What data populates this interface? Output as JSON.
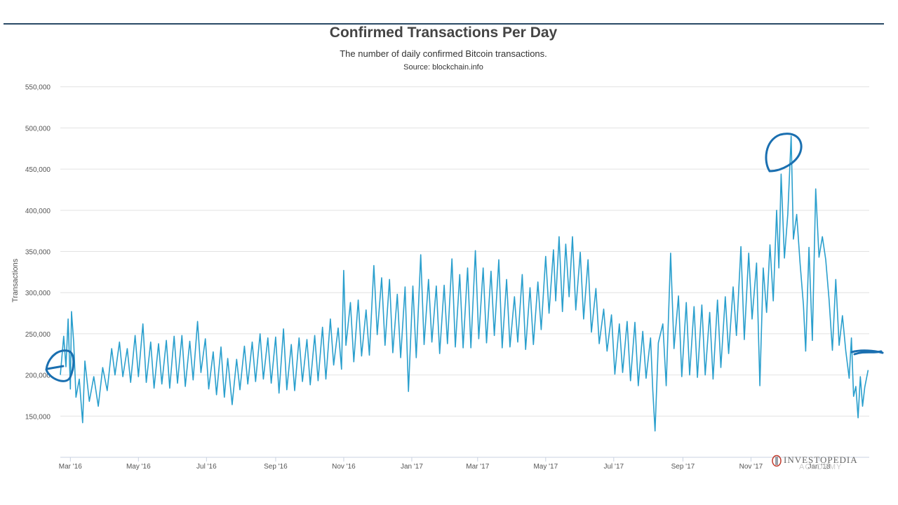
{
  "page": {
    "title": "Confirmed Transactions Per Day",
    "subtitle": "The number of daily confirmed Bitcoin transactions.",
    "source": "Source: blockchain.info"
  },
  "logo": {
    "wordmark": "INVESTOPEDIA",
    "sub": "ACADEMY"
  },
  "colors": {
    "line": "#2a9fcd",
    "annotation": "#1a6fb0",
    "grid": "#e2e2e2",
    "axis": "#c9d2e0"
  },
  "chart_data": {
    "type": "line",
    "title": "Confirmed Transactions Per Day",
    "subtitle": "The number of daily confirmed Bitcoin transactions.",
    "ylabel": "Transactions",
    "xlabel": "",
    "ylim": [
      100000,
      560000
    ],
    "xlim": [
      "2016-02-21",
      "2018-02-15"
    ],
    "y_ticks": [
      {
        "value": 150000,
        "label": "150,000"
      },
      {
        "value": 200000,
        "label": "200,000"
      },
      {
        "value": 250000,
        "label": "250,000"
      },
      {
        "value": 300000,
        "label": "300,000"
      },
      {
        "value": 350000,
        "label": "350,000"
      },
      {
        "value": 400000,
        "label": "400,000"
      },
      {
        "value": 450000,
        "label": "450,000"
      },
      {
        "value": 500000,
        "label": "500,000"
      },
      {
        "value": 550000,
        "label": "550,000"
      }
    ],
    "x_ticks": [
      {
        "value": "2016-03-01",
        "label": "Mar '16"
      },
      {
        "value": "2016-05-01",
        "label": "May '16"
      },
      {
        "value": "2016-07-01",
        "label": "Jul '16"
      },
      {
        "value": "2016-09-01",
        "label": "Sep '16"
      },
      {
        "value": "2016-11-01",
        "label": "Nov '16"
      },
      {
        "value": "2017-01-01",
        "label": "Jan '17"
      },
      {
        "value": "2017-03-01",
        "label": "Mar '17"
      },
      {
        "value": "2017-05-01",
        "label": "May '17"
      },
      {
        "value": "2017-07-01",
        "label": "Jul '17"
      },
      {
        "value": "2017-09-01",
        "label": "Sep '17"
      },
      {
        "value": "2017-11-01",
        "label": "Nov '17"
      },
      {
        "value": "2018-01-01",
        "label": "Jan '18"
      }
    ],
    "grid": true,
    "legend": "none",
    "series": [
      {
        "points": [
          [
            "2016-02-21",
            200000
          ],
          [
            "2016-02-24",
            247000
          ],
          [
            "2016-02-26",
            210000
          ],
          [
            "2016-02-28",
            268000
          ],
          [
            "2016-03-01",
            183000
          ],
          [
            "2016-03-02",
            277000
          ],
          [
            "2016-03-04",
            239000
          ],
          [
            "2016-03-06",
            173000
          ],
          [
            "2016-03-09",
            195000
          ],
          [
            "2016-03-12",
            142000
          ],
          [
            "2016-03-14",
            217000
          ],
          [
            "2016-03-18",
            168000
          ],
          [
            "2016-03-22",
            198000
          ],
          [
            "2016-03-26",
            162000
          ],
          [
            "2016-03-30",
            209000
          ],
          [
            "2016-04-03",
            181000
          ],
          [
            "2016-04-07",
            232000
          ],
          [
            "2016-04-10",
            200000
          ],
          [
            "2016-04-14",
            240000
          ],
          [
            "2016-04-17",
            198000
          ],
          [
            "2016-04-21",
            232000
          ],
          [
            "2016-04-24",
            191000
          ],
          [
            "2016-04-28",
            248000
          ],
          [
            "2016-05-01",
            198000
          ],
          [
            "2016-05-05",
            262000
          ],
          [
            "2016-05-08",
            191000
          ],
          [
            "2016-05-12",
            240000
          ],
          [
            "2016-05-15",
            184000
          ],
          [
            "2016-05-19",
            238000
          ],
          [
            "2016-05-22",
            189000
          ],
          [
            "2016-05-26",
            242000
          ],
          [
            "2016-05-29",
            184000
          ],
          [
            "2016-06-02",
            247000
          ],
          [
            "2016-06-05",
            190000
          ],
          [
            "2016-06-09",
            248000
          ],
          [
            "2016-06-12",
            186000
          ],
          [
            "2016-06-16",
            241000
          ],
          [
            "2016-06-19",
            194000
          ],
          [
            "2016-06-23",
            265000
          ],
          [
            "2016-06-26",
            203000
          ],
          [
            "2016-06-30",
            244000
          ],
          [
            "2016-07-03",
            183000
          ],
          [
            "2016-07-07",
            228000
          ],
          [
            "2016-07-10",
            176000
          ],
          [
            "2016-07-14",
            234000
          ],
          [
            "2016-07-17",
            173000
          ],
          [
            "2016-07-20",
            220000
          ],
          [
            "2016-07-24",
            164000
          ],
          [
            "2016-07-28",
            219000
          ],
          [
            "2016-07-31",
            182000
          ],
          [
            "2016-08-04",
            235000
          ],
          [
            "2016-08-07",
            189000
          ],
          [
            "2016-08-11",
            240000
          ],
          [
            "2016-08-14",
            192000
          ],
          [
            "2016-08-18",
            250000
          ],
          [
            "2016-08-21",
            195000
          ],
          [
            "2016-08-25",
            245000
          ],
          [
            "2016-08-28",
            190000
          ],
          [
            "2016-09-01",
            246000
          ],
          [
            "2016-09-04",
            178000
          ],
          [
            "2016-09-08",
            256000
          ],
          [
            "2016-09-11",
            182000
          ],
          [
            "2016-09-15",
            237000
          ],
          [
            "2016-09-18",
            181000
          ],
          [
            "2016-09-22",
            245000
          ],
          [
            "2016-09-25",
            192000
          ],
          [
            "2016-09-29",
            243000
          ],
          [
            "2016-10-02",
            188000
          ],
          [
            "2016-10-06",
            248000
          ],
          [
            "2016-10-09",
            193000
          ],
          [
            "2016-10-13",
            258000
          ],
          [
            "2016-10-16",
            195000
          ],
          [
            "2016-10-20",
            268000
          ],
          [
            "2016-10-23",
            212000
          ],
          [
            "2016-10-27",
            257000
          ],
          [
            "2016-10-30",
            207000
          ],
          [
            "2016-11-01",
            327000
          ],
          [
            "2016-11-03",
            236000
          ],
          [
            "2016-11-07",
            288000
          ],
          [
            "2016-11-10",
            216000
          ],
          [
            "2016-11-14",
            291000
          ],
          [
            "2016-11-17",
            223000
          ],
          [
            "2016-11-21",
            279000
          ],
          [
            "2016-11-24",
            224000
          ],
          [
            "2016-11-28",
            333000
          ],
          [
            "2016-12-01",
            249000
          ],
          [
            "2016-12-05",
            318000
          ],
          [
            "2016-12-08",
            236000
          ],
          [
            "2016-12-12",
            316000
          ],
          [
            "2016-12-15",
            227000
          ],
          [
            "2016-12-19",
            298000
          ],
          [
            "2016-12-22",
            221000
          ],
          [
            "2016-12-26",
            307000
          ],
          [
            "2016-12-29",
            180000
          ],
          [
            "2017-01-02",
            308000
          ],
          [
            "2017-01-05",
            221000
          ],
          [
            "2017-01-09",
            346000
          ],
          [
            "2017-01-12",
            237000
          ],
          [
            "2017-01-16",
            316000
          ],
          [
            "2017-01-19",
            240000
          ],
          [
            "2017-01-23",
            308000
          ],
          [
            "2017-01-26",
            226000
          ],
          [
            "2017-01-30",
            309000
          ],
          [
            "2017-02-02",
            238000
          ],
          [
            "2017-02-06",
            341000
          ],
          [
            "2017-02-09",
            234000
          ],
          [
            "2017-02-13",
            322000
          ],
          [
            "2017-02-16",
            233000
          ],
          [
            "2017-02-20",
            330000
          ],
          [
            "2017-02-23",
            233000
          ],
          [
            "2017-02-27",
            351000
          ],
          [
            "2017-03-02",
            244000
          ],
          [
            "2017-03-06",
            330000
          ],
          [
            "2017-03-09",
            239000
          ],
          [
            "2017-03-13",
            326000
          ],
          [
            "2017-03-16",
            248000
          ],
          [
            "2017-03-20",
            340000
          ],
          [
            "2017-03-23",
            233000
          ],
          [
            "2017-03-27",
            316000
          ],
          [
            "2017-03-30",
            234000
          ],
          [
            "2017-04-03",
            295000
          ],
          [
            "2017-04-06",
            240000
          ],
          [
            "2017-04-10",
            322000
          ],
          [
            "2017-04-13",
            231000
          ],
          [
            "2017-04-17",
            306000
          ],
          [
            "2017-04-20",
            237000
          ],
          [
            "2017-04-24",
            313000
          ],
          [
            "2017-04-27",
            255000
          ],
          [
            "2017-05-01",
            344000
          ],
          [
            "2017-05-04",
            275000
          ],
          [
            "2017-05-08",
            352000
          ],
          [
            "2017-05-10",
            290000
          ],
          [
            "2017-05-13",
            368000
          ],
          [
            "2017-05-16",
            277000
          ],
          [
            "2017-05-19",
            359000
          ],
          [
            "2017-05-22",
            295000
          ],
          [
            "2017-05-25",
            368000
          ],
          [
            "2017-05-28",
            279000
          ],
          [
            "2017-06-01",
            349000
          ],
          [
            "2017-06-04",
            268000
          ],
          [
            "2017-06-08",
            340000
          ],
          [
            "2017-06-11",
            252000
          ],
          [
            "2017-06-15",
            305000
          ],
          [
            "2017-06-18",
            238000
          ],
          [
            "2017-06-22",
            280000
          ],
          [
            "2017-06-25",
            229000
          ],
          [
            "2017-06-29",
            273000
          ],
          [
            "2017-07-02",
            201000
          ],
          [
            "2017-07-06",
            262000
          ],
          [
            "2017-07-09",
            203000
          ],
          [
            "2017-07-13",
            265000
          ],
          [
            "2017-07-16",
            193000
          ],
          [
            "2017-07-20",
            264000
          ],
          [
            "2017-07-23",
            187000
          ],
          [
            "2017-07-27",
            253000
          ],
          [
            "2017-07-30",
            196000
          ],
          [
            "2017-08-03",
            245000
          ],
          [
            "2017-08-05",
            181000
          ],
          [
            "2017-08-07",
            132000
          ],
          [
            "2017-08-10",
            239000
          ],
          [
            "2017-08-14",
            262000
          ],
          [
            "2017-08-17",
            187000
          ],
          [
            "2017-08-21",
            348000
          ],
          [
            "2017-08-24",
            232000
          ],
          [
            "2017-08-28",
            296000
          ],
          [
            "2017-08-31",
            198000
          ],
          [
            "2017-09-04",
            288000
          ],
          [
            "2017-09-07",
            200000
          ],
          [
            "2017-09-11",
            283000
          ],
          [
            "2017-09-14",
            197000
          ],
          [
            "2017-09-18",
            285000
          ],
          [
            "2017-09-21",
            200000
          ],
          [
            "2017-09-25",
            276000
          ],
          [
            "2017-09-28",
            195000
          ],
          [
            "2017-10-02",
            291000
          ],
          [
            "2017-10-05",
            209000
          ],
          [
            "2017-10-09",
            295000
          ],
          [
            "2017-10-12",
            226000
          ],
          [
            "2017-10-16",
            307000
          ],
          [
            "2017-10-19",
            248000
          ],
          [
            "2017-10-23",
            356000
          ],
          [
            "2017-10-26",
            243000
          ],
          [
            "2017-10-30",
            348000
          ],
          [
            "2017-11-02",
            268000
          ],
          [
            "2017-11-06",
            336000
          ],
          [
            "2017-11-09",
            187000
          ],
          [
            "2017-11-12",
            330000
          ],
          [
            "2017-11-15",
            276000
          ],
          [
            "2017-11-18",
            358000
          ],
          [
            "2017-11-21",
            290000
          ],
          [
            "2017-11-24",
            400000
          ],
          [
            "2017-11-26",
            330000
          ],
          [
            "2017-11-28",
            444000
          ],
          [
            "2017-12-01",
            342000
          ],
          [
            "2017-12-04",
            395000
          ],
          [
            "2017-12-07",
            490000
          ],
          [
            "2017-12-09",
            365000
          ],
          [
            "2017-12-12",
            395000
          ],
          [
            "2017-12-15",
            336000
          ],
          [
            "2017-12-18",
            285000
          ],
          [
            "2017-12-20",
            229000
          ],
          [
            "2017-12-23",
            355000
          ],
          [
            "2017-12-26",
            242000
          ],
          [
            "2017-12-29",
            426000
          ],
          [
            "2018-01-01",
            343000
          ],
          [
            "2018-01-04",
            368000
          ],
          [
            "2018-01-07",
            340000
          ],
          [
            "2018-01-10",
            292000
          ],
          [
            "2018-01-13",
            230000
          ],
          [
            "2018-01-16",
            316000
          ],
          [
            "2018-01-19",
            236000
          ],
          [
            "2018-01-22",
            272000
          ],
          [
            "2018-01-25",
            229000
          ],
          [
            "2018-01-28",
            196000
          ],
          [
            "2018-01-30",
            245000
          ],
          [
            "2018-02-01",
            174000
          ],
          [
            "2018-02-03",
            186000
          ],
          [
            "2018-02-05",
            148000
          ],
          [
            "2018-02-07",
            198000
          ],
          [
            "2018-02-09",
            162000
          ],
          [
            "2018-02-11",
            185000
          ],
          [
            "2018-02-14",
            206000
          ]
        ]
      }
    ]
  }
}
